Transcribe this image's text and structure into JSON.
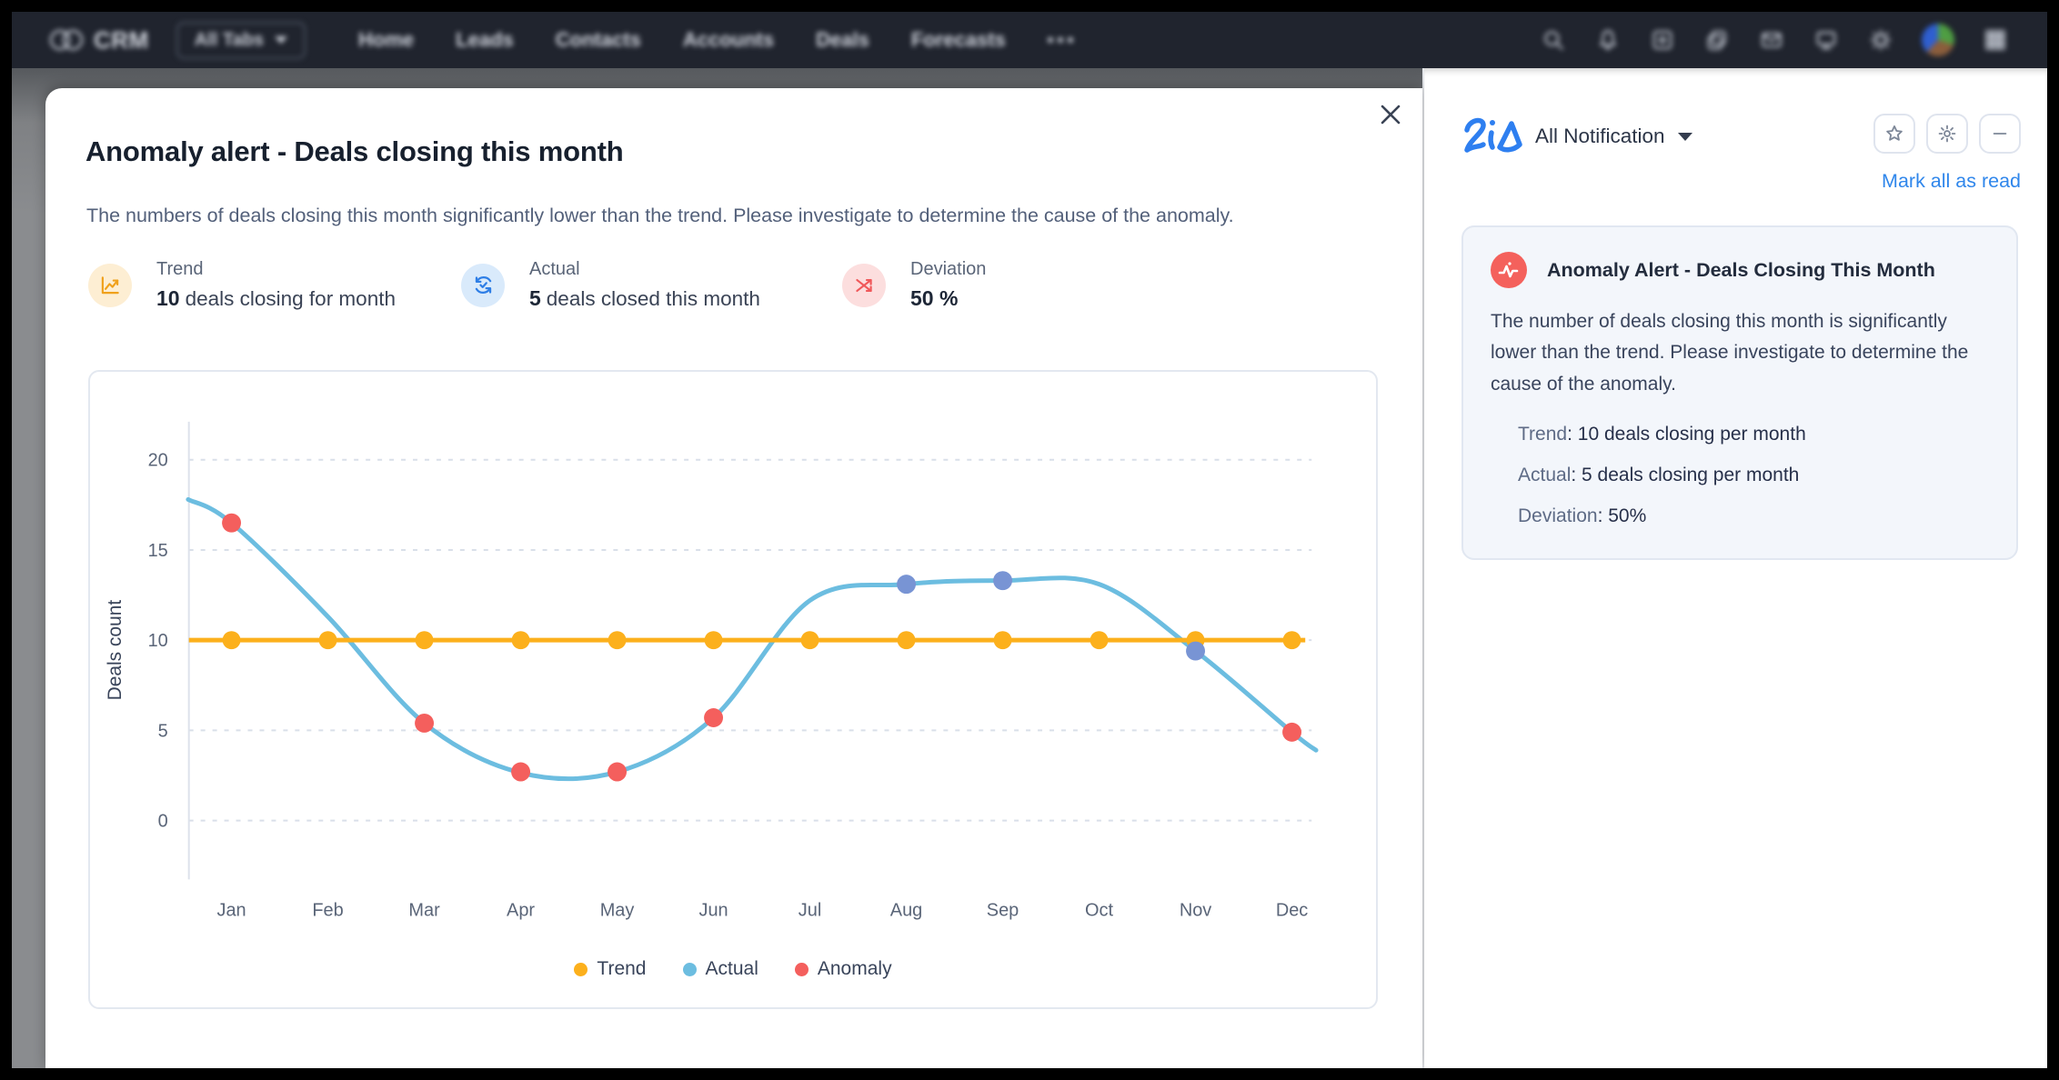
{
  "navbar": {
    "brand": "CRM",
    "all_tabs_label": "All Tabs",
    "menu_items": [
      "Home",
      "Leads",
      "Contacts",
      "Accounts",
      "Deals",
      "Forecasts"
    ]
  },
  "modal": {
    "title": "Anomaly alert - Deals closing this month",
    "description": "The numbers of deals closing this month significantly lower than the trend. Please investigate to determine the cause of the anomaly.",
    "stats": [
      {
        "label": "Trend",
        "value": "10",
        "text": "deals closing for month",
        "accent": "#f0a11c",
        "bg": "#fdeed3"
      },
      {
        "label": "Actual",
        "value": "5",
        "text": "deals closed this month",
        "accent": "#2e7ee6",
        "bg": "#d9eafb"
      },
      {
        "label": "Deviation",
        "value": "50 %",
        "text": "",
        "accent": "#f0585a",
        "bg": "#fcdede"
      }
    ]
  },
  "chart_data": {
    "type": "line",
    "ylabel": "Deals count",
    "xlabel": "",
    "categories": [
      "Jan",
      "Feb",
      "Mar",
      "Apr",
      "May",
      "Jun",
      "Jul",
      "Aug",
      "Sep",
      "Oct",
      "Nov",
      "Dec"
    ],
    "yticks": [
      0,
      5,
      10,
      15,
      20
    ],
    "ylim": [
      0,
      22
    ],
    "grid": "horizontal-dashed",
    "legend_position": "bottom",
    "trend_value": 10,
    "series": [
      {
        "name": "Trend",
        "values": [
          10,
          10,
          10,
          10,
          10,
          10,
          10,
          10,
          10,
          10,
          10,
          10
        ]
      },
      {
        "name": "Actual (markers)",
        "points": [
          {
            "month": "Aug",
            "value": 13.1
          },
          {
            "month": "Sep",
            "value": 13.3
          },
          {
            "month": "Nov",
            "value": 9.4
          }
        ]
      },
      {
        "name": "Anomaly (markers)",
        "points": [
          {
            "month": "Jan",
            "value": 16.5
          },
          {
            "month": "Mar",
            "value": 5.4
          },
          {
            "month": "Apr",
            "value": 2.7
          },
          {
            "month": "May",
            "value": 2.7
          },
          {
            "month": "Jun",
            "value": 5.7
          },
          {
            "month": "Dec",
            "value": 4.9
          }
        ]
      }
    ],
    "actual_curve": [
      {
        "x": -0.45,
        "v": 17.8
      },
      {
        "x": 0,
        "v": 16.5
      },
      {
        "x": 1,
        "v": 11.3
      },
      {
        "x": 2,
        "v": 5.4
      },
      {
        "x": 3,
        "v": 2.65
      },
      {
        "x": 4,
        "v": 2.7
      },
      {
        "x": 5,
        "v": 5.7
      },
      {
        "x": 6,
        "v": 12.2
      },
      {
        "x": 7,
        "v": 13.1
      },
      {
        "x": 8,
        "v": 13.3
      },
      {
        "x": 9,
        "v": 13.1
      },
      {
        "x": 10,
        "v": 9.4
      },
      {
        "x": 11,
        "v": 4.9
      },
      {
        "x": 11.25,
        "v": 3.9
      }
    ],
    "colors": {
      "trend": "#fcb01c",
      "actual_line": "#6cbde0",
      "actual_marker": "#7894d4",
      "anomaly": "#f45f5d",
      "grid": "#d9dfe9",
      "axis": "#dde2eb",
      "tick_text": "#5a6578"
    },
    "legend": [
      {
        "label": "Trend",
        "color": "#fcb01c"
      },
      {
        "label": "Actual",
        "color": "#6cbde0"
      },
      {
        "label": "Anomaly",
        "color": "#f45f5d"
      }
    ]
  },
  "panel": {
    "zia_logo": "Zia",
    "filter_label": "All Notification",
    "mark_all_label": "Mark all as read",
    "link_color": "#2f86eb",
    "card": {
      "title": "Anomaly Alert - Deals Closing This Month",
      "body": "The number of deals closing this month is significantly lower than the trend. Please investigate to determine the cause of the anomaly.",
      "details": [
        {
          "label": "Trend",
          "value": ": 10 deals closing per month"
        },
        {
          "label": "Actual",
          "value": ": 5 deals closing per month"
        },
        {
          "label": "Deviation",
          "value": ": 50%"
        }
      ]
    }
  }
}
